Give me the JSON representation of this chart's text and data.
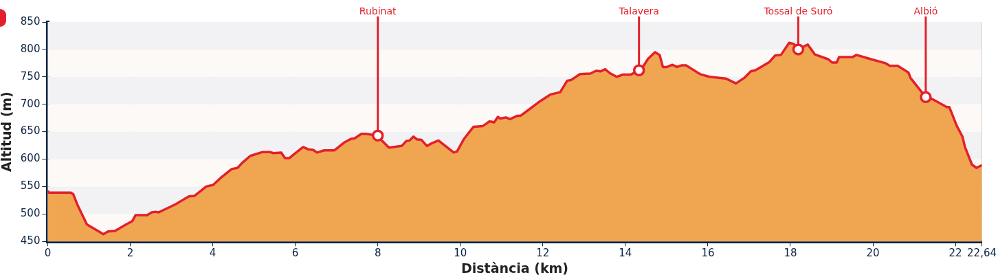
{
  "chart_data": {
    "type": "area",
    "xlabel": "Distància (km)",
    "ylabel": "Altitud (m)",
    "color": "#f0a650",
    "grid": "x",
    "xlim": [
      0,
      22.64
    ],
    "ylim": [
      450,
      850
    ],
    "xticks": [
      0,
      2,
      4,
      6,
      8,
      10,
      12,
      14,
      16,
      18,
      20,
      22,
      {
        "value": 22.64,
        "label": "22,64"
      }
    ],
    "yticks": [
      450,
      500,
      550,
      600,
      650,
      700,
      750,
      800,
      850
    ],
    "x": [
      0,
      0.03,
      0.3,
      0.56,
      0.62,
      0.73,
      0.95,
      1.35,
      1.46,
      1.63,
      1.9,
      2.05,
      2.13,
      2.41,
      2.52,
      2.61,
      2.69,
      2.8,
      3.08,
      3.42,
      3.56,
      3.84,
      4.01,
      4.21,
      4.46,
      4.6,
      4.71,
      4.91,
      5.21,
      5.38,
      5.47,
      5.66,
      5.75,
      5.86,
      5.97,
      6.19,
      6.31,
      6.43,
      6.53,
      6.7,
      6.95,
      7.18,
      7.35,
      7.44,
      7.6,
      7.71,
      8,
      8.07,
      8.27,
      8.58,
      8.69,
      8.77,
      8.86,
      8.95,
      9.06,
      9.19,
      9.31,
      9.47,
      9.67,
      9.84,
      9.92,
      10.09,
      10.32,
      10.54,
      10.71,
      10.82,
      10.91,
      10.97,
      11.1,
      11.21,
      11.38,
      11.46,
      11.94,
      12.19,
      12.42,
      12.59,
      12.68,
      12.9,
      13.15,
      13.29,
      13.4,
      13.51,
      13.62,
      13.79,
      13.93,
      14.13,
      14.33,
      14.44,
      14.55,
      14.72,
      14.83,
      14.91,
      15.01,
      15.14,
      15.25,
      15.36,
      15.47,
      15.81,
      16.04,
      16.43,
      16.68,
      16.88,
      17.04,
      17.15,
      17.49,
      17.63,
      17.77,
      17.97,
      18.08,
      18.19,
      18.42,
      18.59,
      18.92,
      19.01,
      19.12,
      19.18,
      19.51,
      19.6,
      19.96,
      20.3,
      20.41,
      20.6,
      20.86,
      20.91,
      21.28,
      21.45,
      21.79,
      21.85,
      21.92,
      22.03,
      22.17,
      22.23,
      22.4,
      22.51,
      22.64
    ],
    "values": [
      542,
      539,
      539,
      539,
      536,
      515,
      481,
      463,
      468,
      469,
      481,
      487,
      498,
      498,
      503,
      504,
      503,
      507,
      517,
      532,
      533,
      550,
      553,
      567,
      582,
      584,
      593,
      606,
      613,
      613,
      611,
      612,
      602,
      602,
      609,
      622,
      618,
      617,
      612,
      616,
      616,
      630,
      637,
      638,
      646,
      646,
      643,
      636,
      621,
      624,
      633,
      634,
      641,
      636,
      635,
      624,
      629,
      634,
      622,
      612,
      614,
      637,
      659,
      660,
      669,
      667,
      677,
      674,
      676,
      673,
      679,
      679,
      706,
      718,
      722,
      743,
      744,
      755,
      756,
      761,
      760,
      764,
      757,
      750,
      754,
      754,
      762,
      770,
      783,
      795,
      790,
      768,
      768,
      772,
      768,
      771,
      771,
      755,
      750,
      747,
      738,
      748,
      760,
      762,
      777,
      789,
      790,
      812,
      810,
      800,
      809,
      791,
      782,
      776,
      776,
      786,
      786,
      790,
      782,
      775,
      770,
      770,
      758,
      748,
      713,
      709,
      695,
      695,
      682,
      661,
      641,
      622,
      590,
      584,
      589
    ],
    "annotations": [
      {
        "text": "Rubinat",
        "x": 8,
        "y": 643
      },
      {
        "text": "Talavera",
        "x": 14.33,
        "y": 762
      },
      {
        "text": "Tossal de Suró",
        "x": 18.19,
        "y": 800
      },
      {
        "text": "Albió",
        "x": 21.28,
        "y": 713
      }
    ]
  }
}
